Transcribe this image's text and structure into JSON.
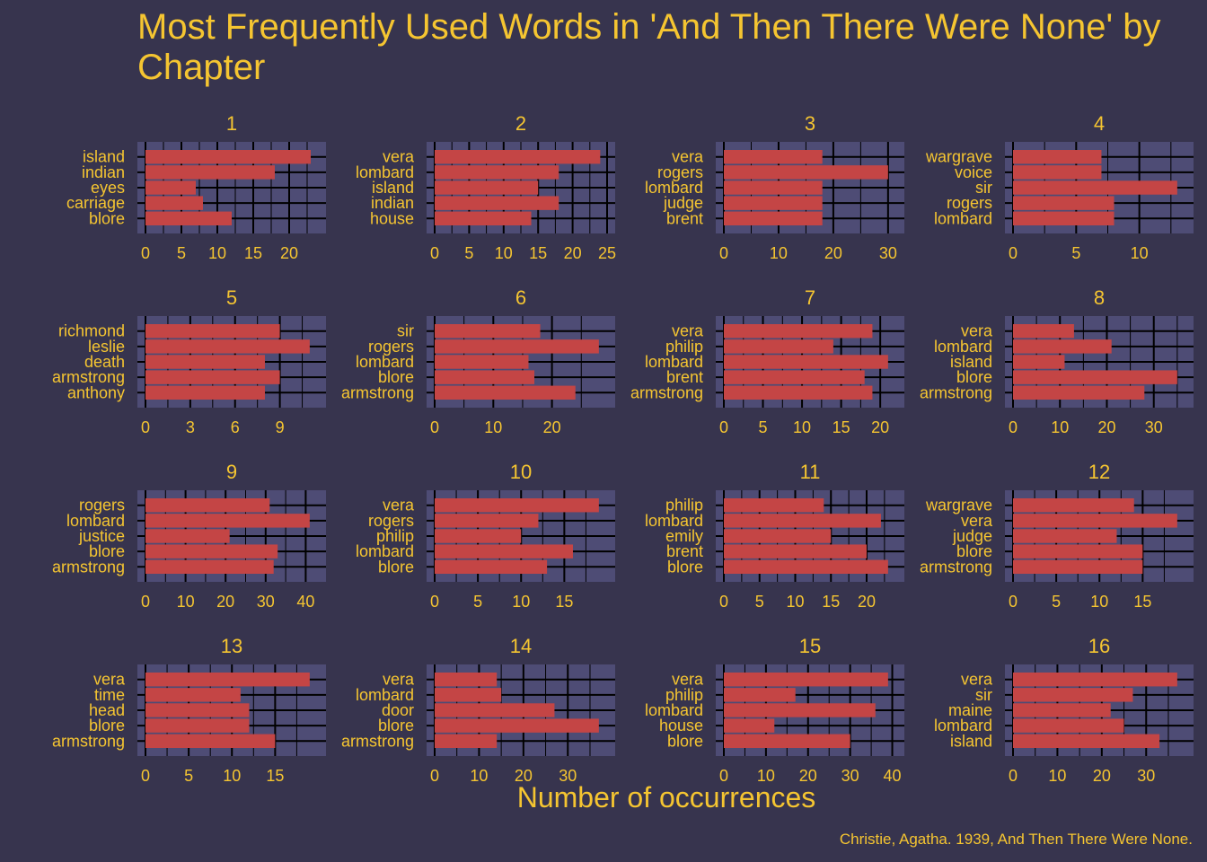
{
  "title": "Most Frequently Used Words in 'And Then There Were None' by Chapter",
  "xlabel": "Number of occurrences",
  "caption": "Christie, Agatha. 1939, And Then There Were None.",
  "colors": {
    "background": "#37344e",
    "panel": "#4e4c75",
    "bar": "#c44545",
    "grid": "#000000",
    "text": "#f5c531"
  },
  "chart_data": [
    {
      "type": "bar",
      "orientation": "horizontal",
      "title": "1",
      "categories": [
        "island",
        "indian",
        "eyes",
        "carriage",
        "blore"
      ],
      "values": [
        23,
        18,
        7,
        8,
        12
      ],
      "xticks": [
        0,
        5,
        10,
        15,
        20
      ],
      "xlim": [
        0,
        24
      ]
    },
    {
      "type": "bar",
      "orientation": "horizontal",
      "title": "2",
      "categories": [
        "vera",
        "lombard",
        "island",
        "indian",
        "house"
      ],
      "values": [
        24,
        18,
        15,
        18,
        14
      ],
      "xticks": [
        0,
        5,
        10,
        15,
        20,
        25
      ],
      "xlim": [
        0,
        25
      ]
    },
    {
      "type": "bar",
      "orientation": "horizontal",
      "title": "3",
      "categories": [
        "vera",
        "rogers",
        "lombard",
        "judge",
        "brent"
      ],
      "values": [
        18,
        30,
        18,
        18,
        18
      ],
      "xticks": [
        0,
        10,
        20,
        30
      ],
      "xlim": [
        0,
        31.5
      ]
    },
    {
      "type": "bar",
      "orientation": "horizontal",
      "title": "4",
      "categories": [
        "wargrave",
        "voice",
        "sir",
        "rogers",
        "lombard"
      ],
      "values": [
        7,
        7,
        13,
        8,
        8
      ],
      "xticks": [
        0,
        5,
        10
      ],
      "xlim": [
        0,
        13.65
      ]
    },
    {
      "type": "bar",
      "orientation": "horizontal",
      "title": "5",
      "categories": [
        "richmond",
        "leslie",
        "death",
        "armstrong",
        "anthony"
      ],
      "values": [
        9,
        11,
        8,
        9,
        8
      ],
      "xticks": [
        0,
        3,
        6,
        9
      ],
      "xlim": [
        0,
        11.55
      ]
    },
    {
      "type": "bar",
      "orientation": "horizontal",
      "title": "6",
      "categories": [
        "sir",
        "rogers",
        "lombard",
        "blore",
        "armstrong"
      ],
      "values": [
        18,
        28,
        16,
        17,
        24
      ],
      "xticks": [
        0,
        10,
        20
      ],
      "xlim": [
        0,
        29.4
      ]
    },
    {
      "type": "bar",
      "orientation": "horizontal",
      "title": "7",
      "categories": [
        "vera",
        "philip",
        "lombard",
        "brent",
        "armstrong"
      ],
      "values": [
        19,
        14,
        21,
        18,
        19
      ],
      "xticks": [
        0,
        5,
        10,
        15,
        20
      ],
      "xlim": [
        0,
        22.05
      ]
    },
    {
      "type": "bar",
      "orientation": "horizontal",
      "title": "8",
      "categories": [
        "vera",
        "lombard",
        "island",
        "blore",
        "armstrong"
      ],
      "values": [
        13,
        21,
        11,
        35,
        28
      ],
      "xticks": [
        0,
        10,
        20,
        30
      ],
      "xlim": [
        0,
        36.75
      ]
    },
    {
      "type": "bar",
      "orientation": "horizontal",
      "title": "9",
      "categories": [
        "rogers",
        "lombard",
        "justice",
        "blore",
        "armstrong"
      ],
      "values": [
        31,
        41,
        21,
        33,
        32
      ],
      "xticks": [
        0,
        10,
        20,
        30,
        40
      ],
      "xlim": [
        0,
        43.05
      ]
    },
    {
      "type": "bar",
      "orientation": "horizontal",
      "title": "10",
      "categories": [
        "vera",
        "rogers",
        "philip",
        "lombard",
        "blore"
      ],
      "values": [
        19,
        12,
        10,
        16,
        13
      ],
      "xticks": [
        0,
        5,
        10,
        15
      ],
      "xlim": [
        0,
        19.95
      ]
    },
    {
      "type": "bar",
      "orientation": "horizontal",
      "title": "11",
      "categories": [
        "philip",
        "lombard",
        "emily",
        "brent",
        "blore"
      ],
      "values": [
        14,
        22,
        15,
        20,
        23
      ],
      "xticks": [
        0,
        5,
        10,
        15,
        20
      ],
      "xlim": [
        0,
        24.15
      ]
    },
    {
      "type": "bar",
      "orientation": "horizontal",
      "title": "12",
      "categories": [
        "wargrave",
        "vera",
        "judge",
        "blore",
        "armstrong"
      ],
      "values": [
        14,
        19,
        12,
        15,
        15
      ],
      "xticks": [
        0,
        5,
        10,
        15
      ],
      "xlim": [
        0,
        19.95
      ]
    },
    {
      "type": "bar",
      "orientation": "horizontal",
      "title": "13",
      "categories": [
        "vera",
        "time",
        "head",
        "blore",
        "armstrong"
      ],
      "values": [
        19,
        11,
        12,
        12,
        15
      ],
      "xticks": [
        0,
        5,
        10,
        15
      ],
      "xlim": [
        0,
        19.95
      ]
    },
    {
      "type": "bar",
      "orientation": "horizontal",
      "title": "14",
      "categories": [
        "vera",
        "lombard",
        "door",
        "blore",
        "armstrong"
      ],
      "values": [
        14,
        15,
        27,
        37,
        14
      ],
      "xticks": [
        0,
        10,
        20,
        30
      ],
      "xlim": [
        0,
        38.85
      ]
    },
    {
      "type": "bar",
      "orientation": "horizontal",
      "title": "15",
      "categories": [
        "vera",
        "philip",
        "lombard",
        "house",
        "blore"
      ],
      "values": [
        39,
        17,
        36,
        12,
        30
      ],
      "xticks": [
        0,
        10,
        20,
        30,
        40
      ],
      "xlim": [
        0,
        40.95
      ]
    },
    {
      "type": "bar",
      "orientation": "horizontal",
      "title": "16",
      "categories": [
        "vera",
        "sir",
        "maine",
        "lombard",
        "island"
      ],
      "values": [
        37,
        27,
        22,
        25,
        33
      ],
      "xticks": [
        0,
        10,
        20,
        30
      ],
      "xlim": [
        0,
        38.85
      ]
    }
  ]
}
